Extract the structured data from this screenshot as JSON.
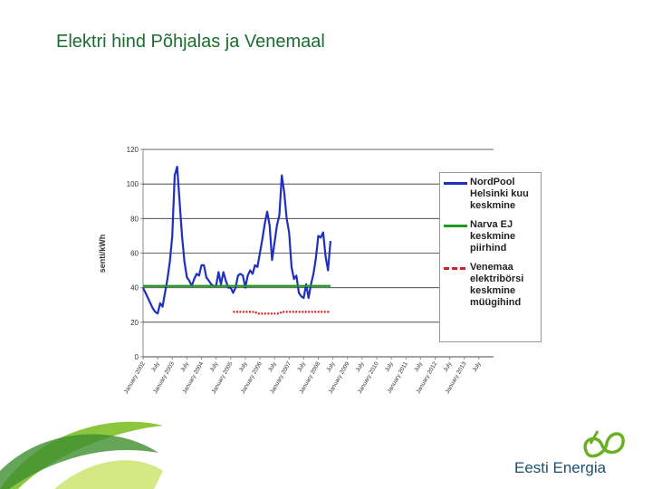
{
  "chart_data": {
    "type": "line",
    "title": "Elektri hind Põhjalas ja Venemaal",
    "y_label": "senti/kWh",
    "categories": [
      "January 2002",
      null,
      null,
      null,
      null,
      null,
      "July",
      null,
      null,
      null,
      null,
      null,
      "January 2003",
      null,
      null,
      null,
      null,
      null,
      "July",
      null,
      null,
      null,
      null,
      null,
      "January 2004",
      null,
      null,
      null,
      null,
      null,
      "July",
      null,
      null,
      null,
      null,
      null,
      "January 2005",
      null,
      null,
      null,
      null,
      null,
      "July",
      null,
      null,
      null,
      null,
      null,
      "January 2006",
      null,
      null,
      null,
      null,
      null,
      "July",
      null,
      null,
      null,
      null,
      null,
      "January 2007",
      null,
      null,
      null,
      null,
      null,
      "July",
      null,
      null,
      null,
      null,
      null,
      "January 2008",
      null,
      null,
      null,
      null,
      null,
      "July",
      null,
      null,
      null,
      null,
      null,
      "January 2009",
      null,
      null,
      null,
      null,
      null,
      "July",
      null,
      null,
      null,
      null,
      null,
      "January 2010",
      null,
      null,
      null,
      null,
      null,
      "July",
      null,
      null,
      null,
      null,
      null,
      "January 2011",
      null,
      null,
      null,
      null,
      null,
      "July",
      null,
      null,
      null,
      null,
      null,
      "January 2012",
      null,
      null,
      null,
      null,
      null,
      "July",
      null,
      null,
      null,
      null,
      null,
      "January 2013",
      null,
      null,
      null,
      null,
      null,
      "July",
      null,
      null,
      null,
      null,
      null
    ],
    "series": [
      {
        "name": "NordPool Helsinki kuu keskmine",
        "color": "#1f2fbf",
        "dash": false,
        "values": [
          40,
          37,
          34,
          31,
          28,
          26,
          25,
          31,
          29,
          37,
          45,
          55,
          70,
          105,
          110,
          90,
          70,
          55,
          46,
          44,
          41,
          45,
          48,
          47,
          53,
          53,
          46,
          44,
          42,
          41,
          41,
          49,
          42,
          49,
          44,
          40,
          40,
          37,
          40,
          47,
          48,
          47,
          40,
          47,
          50,
          48,
          53,
          52,
          60,
          68,
          77,
          84,
          76,
          56,
          66,
          76,
          82,
          105,
          95,
          80,
          72,
          52,
          45,
          47,
          37,
          35,
          34,
          42,
          34,
          42,
          48,
          57,
          70,
          69,
          72,
          58,
          50,
          67,
          null,
          null,
          null,
          null,
          null,
          null,
          null,
          null,
          null,
          null,
          null,
          null,
          null,
          null,
          null,
          null,
          null,
          null,
          null,
          null,
          null,
          null,
          null,
          null,
          null,
          null,
          null,
          null,
          null,
          null,
          null,
          null,
          null,
          null,
          null,
          null,
          null,
          null,
          null,
          null,
          null,
          null,
          null,
          null,
          null,
          null,
          null,
          null,
          null,
          null,
          null,
          null,
          null,
          null,
          null,
          null,
          null,
          null,
          null,
          null,
          null,
          null,
          null,
          null,
          null,
          null
        ]
      },
      {
        "name": "Narva EJ keskmine piirhind",
        "color": "#1e9a1e",
        "dash": false,
        "values": [
          41,
          41,
          41,
          41,
          41,
          41,
          41,
          41,
          41,
          41,
          41,
          41,
          41,
          41,
          41,
          41,
          41,
          41,
          41,
          41,
          41,
          41,
          41,
          41,
          41,
          41,
          41,
          41,
          41,
          41,
          41,
          41,
          41,
          41,
          41,
          41,
          41,
          41,
          41,
          41,
          41,
          41,
          41,
          41,
          41,
          41,
          41,
          41,
          41,
          41,
          41,
          41,
          41,
          41,
          41,
          41,
          41,
          41,
          41,
          41,
          41,
          41,
          41,
          41,
          41,
          41,
          41,
          41,
          41,
          41,
          41,
          41,
          41,
          41,
          41,
          41,
          41,
          41,
          null,
          null,
          null,
          null,
          null,
          null,
          null,
          null,
          null,
          null,
          null,
          null,
          null,
          null,
          null,
          null,
          null,
          null,
          null,
          null,
          null,
          null,
          null,
          null,
          null,
          null,
          null,
          null,
          null,
          null,
          null,
          null,
          null,
          null,
          null,
          null,
          null,
          null,
          null,
          null,
          null,
          null,
          null,
          null,
          null,
          null,
          null,
          null,
          null,
          null,
          null,
          null,
          null,
          null,
          null,
          null,
          null,
          null,
          null,
          null,
          null,
          null,
          null,
          null,
          null,
          null
        ]
      },
      {
        "name": "Venemaa elektribörsi keskmine müügihind",
        "color": "#d42020",
        "dash": true,
        "values": [
          null,
          null,
          null,
          null,
          null,
          null,
          null,
          null,
          null,
          null,
          null,
          null,
          null,
          null,
          null,
          null,
          null,
          null,
          null,
          null,
          null,
          null,
          null,
          null,
          null,
          null,
          null,
          null,
          null,
          null,
          null,
          null,
          null,
          null,
          null,
          null,
          null,
          26,
          26,
          26,
          26,
          26,
          26,
          26,
          26,
          26,
          26,
          25,
          25,
          25,
          25,
          25,
          25,
          25,
          25,
          25,
          25,
          26,
          26,
          26,
          26,
          26,
          26,
          26,
          26,
          26,
          26,
          26,
          26,
          26,
          26,
          26,
          26,
          26,
          26,
          26,
          26,
          26,
          null,
          null,
          null,
          null,
          null,
          null,
          null,
          null,
          null,
          null,
          null,
          null,
          null,
          null,
          null,
          null,
          null,
          null,
          null,
          null,
          null,
          null,
          null,
          null,
          null,
          null,
          null,
          null,
          null,
          null,
          null,
          null,
          null,
          null,
          null,
          null,
          null,
          null,
          null,
          null,
          null,
          null,
          null,
          null,
          null,
          null,
          null,
          null,
          null,
          null,
          null,
          null,
          null,
          null,
          null,
          null,
          null,
          null,
          null,
          null,
          null,
          null,
          null,
          null,
          null,
          null
        ]
      }
    ],
    "ylim": [
      0,
      120
    ],
    "yticks": [
      0,
      20,
      40,
      60,
      80,
      100,
      120
    ],
    "grid": true,
    "legend": "right"
  },
  "footer": {
    "logo_text": "Eesti Energia"
  }
}
